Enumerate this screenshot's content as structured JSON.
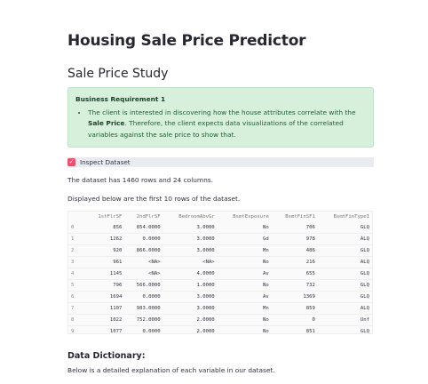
{
  "title": "Housing Sale Price Predictor",
  "subtitle": "Sale Price Study",
  "requirement": {
    "title": "Business Requirement 1",
    "text_before": "The client is interested in discovering how the house attributes correlate with the ",
    "bold": "Sale Price",
    "text_after": ". Therefore, the client expects data visualizations of the correlated variables against the sale price to show that."
  },
  "checkbox": {
    "label": "Inspect Dataset",
    "checked": true,
    "mark": "✓"
  },
  "dataset_info": "The dataset has 1460 rows and 24 columns.",
  "table_intro": "Displayed below are the first 10 rows of the dataset.",
  "table": {
    "columns": [
      "",
      "1stFlrSF",
      "2ndFlrSF",
      "BedroomAbvGr",
      "BsmtExposure",
      "BsmtFinSF1",
      "BsmtFinType1"
    ],
    "rows": [
      [
        "0",
        "856",
        "854.0000",
        "3.0000",
        "No",
        "706",
        "GLQ"
      ],
      [
        "1",
        "1262",
        "0.0000",
        "3.0000",
        "Gd",
        "978",
        "ALQ"
      ],
      [
        "2",
        "920",
        "866.0000",
        "3.0000",
        "Mn",
        "486",
        "GLQ"
      ],
      [
        "3",
        "961",
        "<NA>",
        "<NA>",
        "No",
        "216",
        "ALQ"
      ],
      [
        "4",
        "1145",
        "<NA>",
        "4.0000",
        "Av",
        "655",
        "GLQ"
      ],
      [
        "5",
        "796",
        "566.0000",
        "1.0000",
        "No",
        "732",
        "GLQ"
      ],
      [
        "6",
        "1694",
        "0.0000",
        "3.0000",
        "Av",
        "1369",
        "GLQ"
      ],
      [
        "7",
        "1107",
        "983.0000",
        "3.0000",
        "Mn",
        "859",
        "ALQ"
      ],
      [
        "8",
        "1022",
        "752.0000",
        "2.0000",
        "No",
        "0",
        "Unf"
      ],
      [
        "9",
        "1077",
        "0.0000",
        "2.0000",
        "No",
        "851",
        "GLQ"
      ]
    ]
  },
  "dictionary_title": "Data Dictionary:",
  "dictionary_intro": "Below is a detailed explanation of each variable in our dataset.",
  "colors": {
    "accent": "#f0506e",
    "success_bg": "#d7f0dc",
    "text": "#31333f"
  }
}
